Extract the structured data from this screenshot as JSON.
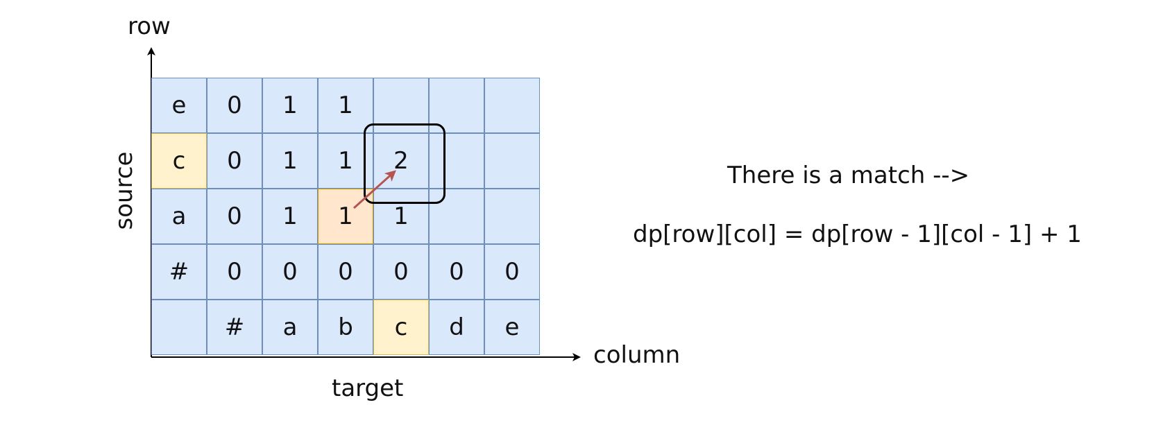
{
  "diagram": {
    "axis_labels": {
      "vertical": "row",
      "horizontal": "column"
    },
    "side_labels": {
      "left": "source",
      "bottom": "target"
    },
    "grid": [
      [
        "e",
        "0",
        "1",
        "1",
        "",
        "",
        ""
      ],
      [
        "c",
        "0",
        "1",
        "1",
        "2",
        "",
        ""
      ],
      [
        "a",
        "0",
        "1",
        "1",
        "1",
        "",
        ""
      ],
      [
        "#",
        "0",
        "0",
        "0",
        "0",
        "0",
        "0"
      ],
      [
        "",
        "#",
        "a",
        "b",
        "c",
        "d",
        "e"
      ]
    ],
    "highlight_yellow": [
      [
        1,
        0
      ],
      [
        4,
        4
      ]
    ],
    "highlight_orange": [
      [
        2,
        3
      ]
    ],
    "focus_cell": [
      1,
      4
    ],
    "arrow": {
      "from": [
        2,
        3
      ],
      "to": [
        1,
        4
      ],
      "color": "#b85450"
    },
    "message": "There is a match -->",
    "formula": "dp[row][col] = dp[row - 1][col - 1] + 1"
  }
}
